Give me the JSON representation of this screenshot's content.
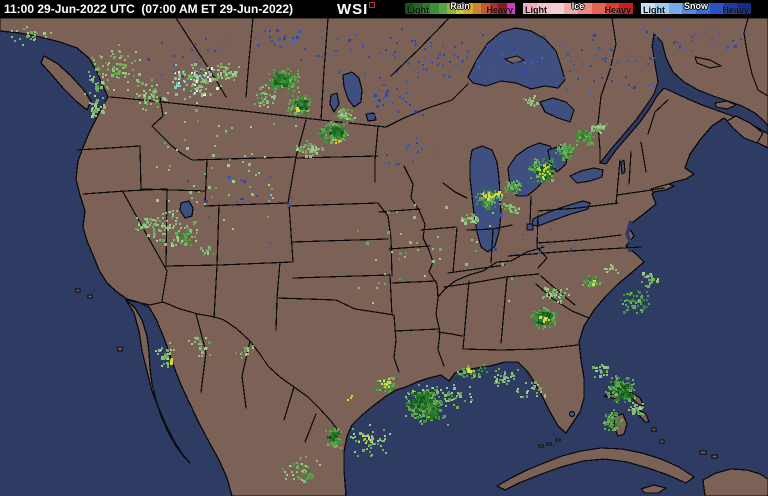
{
  "header": {
    "timestamp": "11:00 29-Jun-2022 UTC  (07:00 AM ET 29-Jun-2022)",
    "logo_text": "WSI",
    "legends": [
      {
        "name": "Rain",
        "light_label": "Light",
        "heavy_label": "Heavy",
        "colors": [
          "#145214",
          "#1e661e",
          "#2a7a2a",
          "#3c8f34",
          "#5ca344",
          "#8fb83a",
          "#c9ce34",
          "#d4ac30",
          "#cc842c",
          "#c25a28",
          "#aa3220",
          "#871c1a",
          "#cf3cc4"
        ]
      },
      {
        "name": "Ice",
        "light_label": "Light",
        "heavy_label": "Heavy",
        "colors": [
          "#eeaebe",
          "#f3c2cb",
          "#f5cdd2",
          "#f2aaa4",
          "#ee8a7e",
          "#e96352",
          "#e03c2e",
          "#c62018"
        ]
      },
      {
        "name": "Snow",
        "light_label": "Light",
        "heavy_label": "Heavy",
        "colors": [
          "#c4e2f6",
          "#9ecaee",
          "#78abe6",
          "#538ade",
          "#3a6cd2",
          "#2a52c0",
          "#1c3aaa",
          "#122c90"
        ]
      }
    ]
  },
  "map": {
    "colors": {
      "ocean": "#2e3b63",
      "land": "#7b6156",
      "lake": "#3f4f80",
      "border": "#0a0a0a"
    },
    "seed": 1337,
    "palettes": {
      "L": [
        [
          "#8fbf7d",
          4
        ],
        [
          "#6fae5f",
          3
        ],
        [
          "#a5cc90",
          2
        ],
        [
          "#57a24a",
          1
        ]
      ],
      "M": [
        [
          "#58a34b",
          4
        ],
        [
          "#3f8f3c",
          3
        ],
        [
          "#76b465",
          2
        ],
        [
          "#2e7c2d",
          1
        ]
      ],
      "D": [
        [
          "#2c7a2b",
          3
        ],
        [
          "#1f6a22",
          3
        ],
        [
          "#17581c",
          2
        ],
        [
          "#3f8f3c",
          1
        ]
      ],
      "Y": [
        [
          "#d9d83e",
          3
        ],
        [
          "#c8c832",
          1
        ]
      ],
      "N": [
        [
          "#8fbf7d",
          4
        ],
        [
          "#a5cc90",
          2
        ],
        [
          "#e8eee8",
          1
        ],
        [
          "#82d2cc",
          1
        ],
        [
          "#6fae5f",
          2
        ]
      ],
      "B": [
        [
          "#3a57a8",
          2
        ],
        [
          "#2f4a9e",
          2
        ],
        [
          "#4a66b4",
          1
        ]
      ]
    },
    "clusters": [
      [
        30,
        35,
        25,
        12,
        25,
        2,
        "L"
      ],
      [
        115,
        68,
        30,
        26,
        70,
        2,
        "L"
      ],
      [
        95,
        82,
        12,
        20,
        22,
        2,
        "L"
      ],
      [
        150,
        95,
        20,
        18,
        50,
        2,
        "L"
      ],
      [
        196,
        82,
        26,
        20,
        120,
        2,
        "N"
      ],
      [
        228,
        72,
        14,
        10,
        40,
        2,
        "L"
      ],
      [
        96,
        108,
        10,
        14,
        28,
        2,
        "L"
      ],
      [
        265,
        95,
        14,
        12,
        40,
        2,
        "L"
      ],
      [
        345,
        115,
        10,
        8,
        40,
        2,
        "L"
      ],
      [
        308,
        148,
        16,
        9,
        50,
        2,
        "L"
      ],
      [
        283,
        80,
        18,
        14,
        150,
        2,
        "M"
      ],
      [
        300,
        104,
        14,
        11,
        120,
        2,
        "M"
      ],
      [
        333,
        131,
        16,
        12,
        130,
        2,
        "M"
      ],
      [
        280,
        78,
        8,
        6,
        60,
        3,
        "D"
      ],
      [
        301,
        103,
        6,
        5,
        50,
        3,
        "D"
      ],
      [
        336,
        131,
        7,
        6,
        60,
        3,
        "D"
      ],
      [
        337,
        140,
        5,
        3,
        6,
        2,
        "Y"
      ],
      [
        296,
        110,
        4,
        3,
        4,
        2,
        "Y"
      ],
      [
        148,
        225,
        18,
        10,
        30,
        2,
        "L"
      ],
      [
        170,
        228,
        30,
        20,
        80,
        2,
        "L"
      ],
      [
        185,
        238,
        12,
        8,
        25,
        2,
        "M"
      ],
      [
        205,
        250,
        10,
        6,
        12,
        2,
        "L"
      ],
      [
        470,
        218,
        10,
        5,
        30,
        2,
        "L"
      ],
      [
        509,
        208,
        12,
        6,
        25,
        2,
        "L"
      ],
      [
        530,
        100,
        10,
        6,
        15,
        2,
        "L"
      ],
      [
        598,
        127,
        9,
        6,
        30,
        2,
        "L"
      ],
      [
        488,
        198,
        16,
        11,
        110,
        2,
        "M"
      ],
      [
        513,
        186,
        10,
        8,
        50,
        2,
        "M"
      ],
      [
        541,
        170,
        15,
        13,
        130,
        2,
        "M"
      ],
      [
        565,
        150,
        12,
        10,
        80,
        2,
        "M"
      ],
      [
        584,
        136,
        11,
        8,
        60,
        2,
        "M"
      ],
      [
        543,
        170,
        8,
        7,
        40,
        3,
        "D"
      ],
      [
        486,
        195,
        8,
        6,
        14,
        2,
        "Y"
      ],
      [
        544,
        170,
        8,
        8,
        16,
        2,
        "Y"
      ],
      [
        498,
        192,
        5,
        4,
        5,
        2,
        "Y"
      ],
      [
        556,
        294,
        16,
        9,
        40,
        2,
        "L"
      ],
      [
        610,
        268,
        8,
        5,
        15,
        2,
        "L"
      ],
      [
        650,
        278,
        10,
        8,
        25,
        2,
        "L"
      ],
      [
        543,
        317,
        13,
        11,
        120,
        2,
        "M"
      ],
      [
        590,
        281,
        12,
        7,
        35,
        2,
        "M"
      ],
      [
        634,
        300,
        16,
        14,
        60,
        2,
        "M"
      ],
      [
        543,
        316,
        7,
        6,
        60,
        3,
        "D"
      ],
      [
        544,
        318,
        6,
        5,
        10,
        2,
        "Y"
      ],
      [
        592,
        282,
        4,
        3,
        3,
        2,
        "Y"
      ],
      [
        424,
        404,
        30,
        24,
        60,
        2,
        "L"
      ],
      [
        455,
        395,
        28,
        13,
        35,
        2,
        "L"
      ],
      [
        530,
        390,
        18,
        10,
        25,
        2,
        "L"
      ],
      [
        368,
        440,
        24,
        18,
        50,
        2,
        "L"
      ],
      [
        503,
        377,
        14,
        9,
        35,
        2,
        "L"
      ],
      [
        424,
        404,
        20,
        18,
        200,
        2,
        "M"
      ],
      [
        386,
        384,
        13,
        9,
        50,
        2,
        "M"
      ],
      [
        470,
        371,
        18,
        7,
        40,
        2,
        "M"
      ],
      [
        333,
        438,
        8,
        12,
        60,
        2,
        "M"
      ],
      [
        420,
        400,
        11,
        9,
        90,
        3,
        "D"
      ],
      [
        430,
        412,
        7,
        6,
        40,
        3,
        "D"
      ],
      [
        332,
        434,
        5,
        6,
        25,
        3,
        "D"
      ],
      [
        384,
        383,
        8,
        6,
        12,
        2,
        "Y"
      ],
      [
        366,
        438,
        12,
        9,
        8,
        2,
        "Y"
      ],
      [
        468,
        370,
        8,
        4,
        6,
        2,
        "Y"
      ],
      [
        352,
        398,
        6,
        4,
        4,
        2,
        "Y"
      ],
      [
        600,
        370,
        9,
        7,
        25,
        2,
        "L"
      ],
      [
        636,
        408,
        10,
        8,
        30,
        2,
        "L"
      ],
      [
        620,
        388,
        15,
        16,
        120,
        2,
        "M"
      ],
      [
        612,
        420,
        11,
        11,
        60,
        2,
        "M"
      ],
      [
        623,
        391,
        8,
        8,
        40,
        3,
        "D"
      ],
      [
        166,
        356,
        13,
        16,
        35,
        2,
        "L"
      ],
      [
        198,
        346,
        16,
        12,
        25,
        2,
        "L"
      ],
      [
        246,
        350,
        14,
        8,
        15,
        2,
        "L"
      ],
      [
        299,
        468,
        22,
        14,
        35,
        2,
        "L"
      ],
      [
        310,
        475,
        10,
        6,
        15,
        2,
        "M"
      ],
      [
        170,
        360,
        6,
        5,
        5,
        2,
        "Y"
      ],
      [
        210,
        170,
        100,
        70,
        60,
        2,
        "L"
      ],
      [
        430,
        250,
        90,
        60,
        40,
        2,
        "L"
      ],
      [
        430,
        55,
        130,
        30,
        80,
        2,
        "B"
      ],
      [
        290,
        40,
        60,
        20,
        30,
        2,
        "B"
      ],
      [
        600,
        60,
        90,
        35,
        50,
        2,
        "B"
      ],
      [
        390,
        95,
        40,
        22,
        30,
        2,
        "B"
      ],
      [
        410,
        150,
        30,
        18,
        20,
        2,
        "B"
      ],
      [
        690,
        40,
        60,
        20,
        25,
        2,
        "B"
      ],
      [
        180,
        60,
        60,
        30,
        25,
        2,
        "B"
      ],
      [
        540,
        230,
        60,
        40,
        15,
        2,
        "B"
      ],
      [
        240,
        210,
        70,
        50,
        15,
        2,
        "B"
      ]
    ]
  }
}
